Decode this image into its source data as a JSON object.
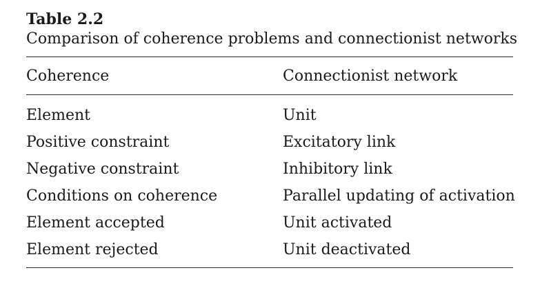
{
  "table": {
    "number": "Table 2.2",
    "caption": "Comparison of coherence problems and connectionist networks",
    "headers": [
      "Coherence",
      "Connectionist network"
    ],
    "rows": [
      [
        "Element",
        "Unit"
      ],
      [
        "Positive constraint",
        "Excitatory link"
      ],
      [
        "Negative constraint",
        "Inhibitory link"
      ],
      [
        "Conditions on coherence",
        "Parallel updating of activation"
      ],
      [
        "Element accepted",
        "Unit activated"
      ],
      [
        "Element rejected",
        "Unit deactivated"
      ]
    ]
  }
}
